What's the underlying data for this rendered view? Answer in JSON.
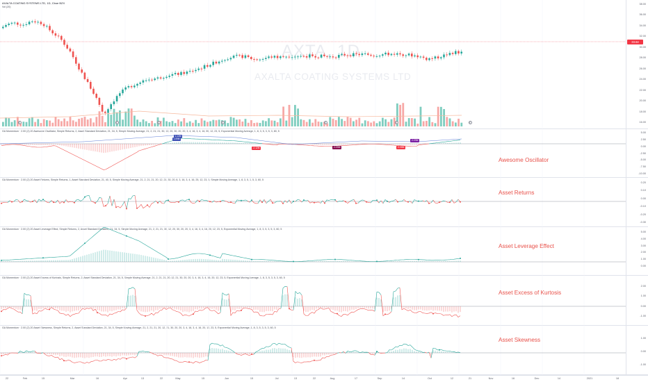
{
  "symbol": {
    "title": "AXALTA COATING SYSTEMS LTD, 1D, Cboe BZX",
    "sub": "Vol (20)",
    "watermark_ticker": "AXTA, 1D",
    "watermark_name": "AXALTA COATING SYSTEMS LTD",
    "last_price": "33.64"
  },
  "price_scale": [
    "38.00",
    "36.00",
    "34.00",
    "32.00",
    "30.00",
    "28.00",
    "26.00",
    "24.00",
    "22.00",
    "20.00",
    "18.00",
    "16.00"
  ],
  "events": [
    "E",
    "E",
    "D",
    "E",
    "E",
    "D",
    "E"
  ],
  "panes": [
    {
      "header": "GA Momentum · 2.00 (2) 20 Awesome Oscillator, Simple Returns, 2, Asset Standard Deviation, 21, 34, 5, Simple Moving Average, 21, 2, 21, 21, 30, 12, 20, 30, 20, 20, 3, 4, 16, 3, 4, 16, 55, 12, 23, 5, Exponential Moving Average, 1, 8, 3, 5, 3, 5, 3, 80, 5",
      "label": "Awesome Oscillator",
      "ticks": [
        "5.00",
        "2.50",
        "0.00",
        "-2.50",
        "-5.00",
        "-7.50",
        "-10.00"
      ]
    },
    {
      "header": "GA Momentum · 2.00 (2) 20 Asset Returns, Simple Returns, 1, Asset Standard Deviation, 21, 40, 5, Simple Moving Average, 21, 2, 21, 21, 20, 12, 21, 30, 20, 8, 3, 16, 3, 4, 16, 25, 12, 23, 5, Simple Moving Average, 1, 8, 3, 5, 3, 5, 3, 60, 5",
      "label": "Asset Returns",
      "ticks": [
        "0.20",
        "0.10",
        "0.00",
        "-0.10",
        "-0.20",
        "-0.30"
      ]
    },
    {
      "header": "GA Momentum · 2.00 (2) 20 Asset Leverage Effect, Simple Returns, 2, Asset Standard Deviation, 21, 34, 5, Simple Moving Average, 21, 2, 21, 21, 30, 12, 20, 30, 20, 20, 3, 4, 16, 3, 4, 16, 20, 12, 23, 5, Exponential Moving Average, 1, 8, 3, 5, 3, 5, 3, 60, 5",
      "label": "Asset Leverage Effect",
      "ticks": [
        "5.00",
        "4.00",
        "3.00",
        "2.00",
        "1.00",
        "0.00"
      ]
    },
    {
      "header": "GA Momentum · 2.00 (2) 20 Asset Excess of Kurtosis, Simple Returns, 2, Asset Standard Deviation, 21, 34, 5, Simple Moving Average, 21, 2, 21, 21, 20, 12, 21, 30, 20, 20, 3, 4, 16, 3, 4, 16, 20, 12, 23, 5, Exponential Moving Average, 1, 8, 3, 5, 3, 5, 3, 60, 5",
      "label": "Asset Excess of Kurtosis",
      "ticks": [
        "2.00",
        "1.00",
        "0.00",
        "-1.00"
      ]
    },
    {
      "header": "GA Momentum · 2.00 (2) 20 Asset Skewness, Simple Returns, 2, Asset Standard Deviation, 21, 34, 5, Simple Moving Average, 21, 2, 21, 21, 20, 12, 21, 30, 20, 20, 3, 4, 16, 3, 4, 16, 20, 12, 23, 5, Exponential Moving Average, 1, 8, 3, 5, 3, 5, 3, 60, 5",
      "label": "Asset Skewness",
      "ticks": [
        "1.00",
        "0.00",
        "-1.00"
      ]
    }
  ],
  "ao_badges": [
    "-2.12M",
    "-0.05M",
    "-0.08M",
    "-0.09M",
    "1.12M",
    "1.09M"
  ],
  "time_axis": [
    "22",
    "Feb",
    "15",
    "Mar",
    "16",
    "Apr",
    "13",
    "22",
    "May",
    "15",
    "Jun",
    "15",
    "Jul",
    "13",
    "22",
    "Aug",
    "17",
    "Sep",
    "14",
    "Oct",
    "12",
    "21",
    "Nov",
    "16",
    "Dec",
    "14",
    "2021",
    "18"
  ],
  "colors": {
    "up": "#26a69a",
    "down": "#ef5350",
    "vol_up": "#7fcdbf",
    "vol_down": "#f7a8a6",
    "label": "#e8514a",
    "last": "#f23645"
  }
}
